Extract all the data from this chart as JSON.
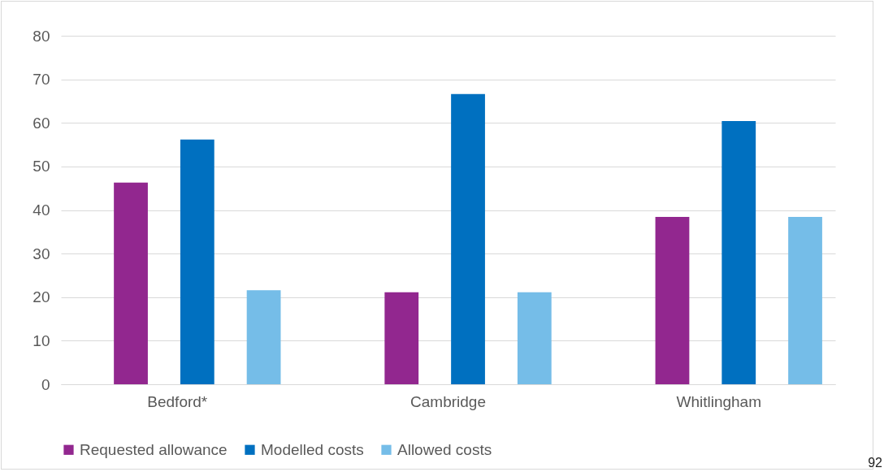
{
  "chart_data": {
    "type": "bar",
    "categories": [
      "Bedford*",
      "Cambridge",
      "Whitlingham"
    ],
    "series": [
      {
        "name": "Requested allowance",
        "color": "#92278f",
        "values": [
          46.3,
          21.1,
          38.4
        ]
      },
      {
        "name": "Modelled costs",
        "color": "#0070c0",
        "values": [
          56.2,
          66.6,
          60.4
        ]
      },
      {
        "name": "Allowed costs",
        "color": "#75bde8",
        "values": [
          21.6,
          21.1,
          38.4
        ]
      }
    ],
    "ylim": [
      0,
      80
    ],
    "yticks": [
      0,
      10,
      20,
      30,
      40,
      50,
      60,
      70,
      80
    ],
    "grid": "y",
    "legend": "bottom",
    "annotations": [
      "92"
    ]
  }
}
